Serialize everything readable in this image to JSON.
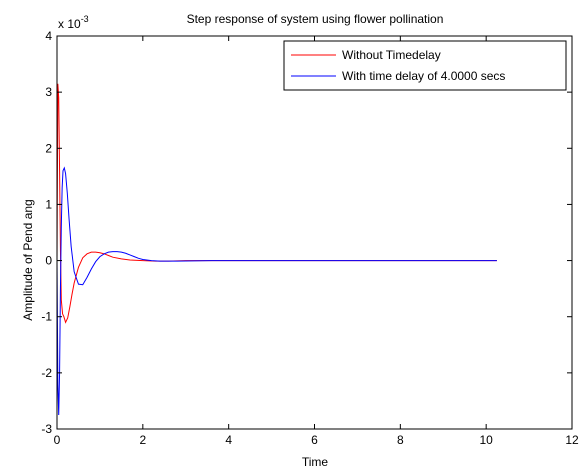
{
  "chart_data": {
    "type": "line",
    "title": "Step response of system using flower pollination",
    "xlabel": "Time",
    "ylabel": "Amplitude of Pend ang",
    "y_scale_label": {
      "base": "x 10",
      "exponent": "-3"
    },
    "xlim": [
      0,
      12
    ],
    "ylim": [
      -3,
      4
    ],
    "x_ticks": [
      "0",
      "2",
      "4",
      "6",
      "8",
      "10",
      "12"
    ],
    "y_ticks": [
      "-3",
      "-2",
      "-1",
      "0",
      "1",
      "2",
      "3",
      "4"
    ],
    "grid": false,
    "legend_position": "top-right",
    "series": [
      {
        "name": "Without Timedelay",
        "color": "#ff0000",
        "x": [
          0,
          0.02,
          0.04,
          0.06,
          0.08,
          0.1,
          0.13,
          0.16,
          0.2,
          0.25,
          0.3,
          0.35,
          0.4,
          0.5,
          0.6,
          0.7,
          0.8,
          0.9,
          1.0,
          1.1,
          1.2,
          1.3,
          1.5,
          1.7,
          2.0,
          2.3,
          2.6,
          3.0,
          3.6,
          5,
          7,
          9,
          10.25
        ],
        "y": [
          0,
          3.15,
          2.9,
          1.6,
          0.2,
          -0.7,
          -0.95,
          -1.0,
          -1.1,
          -1.02,
          -0.82,
          -0.6,
          -0.4,
          -0.12,
          0.05,
          0.12,
          0.15,
          0.15,
          0.14,
          0.12,
          0.09,
          0.06,
          0.03,
          0.01,
          0.0,
          -0.01,
          -0.01,
          0.0,
          0.0,
          0.0,
          0.0,
          0.0,
          0.0
        ]
      },
      {
        "name": "With time delay of 4.0000 secs",
        "color": "#0000ff",
        "x": [
          0,
          0.02,
          0.04,
          0.06,
          0.08,
          0.1,
          0.12,
          0.14,
          0.17,
          0.2,
          0.24,
          0.28,
          0.33,
          0.4,
          0.5,
          0.6,
          0.7,
          0.8,
          0.9,
          1.0,
          1.1,
          1.2,
          1.3,
          1.4,
          1.5,
          1.6,
          1.7,
          1.8,
          1.9,
          2.0,
          2.2,
          2.4,
          2.8,
          3.6,
          5,
          7,
          9,
          10.25
        ],
        "y": [
          0,
          -2.2,
          -2.75,
          -2.0,
          -0.5,
          0.6,
          1.3,
          1.6,
          1.65,
          1.55,
          1.2,
          0.75,
          0.25,
          -0.2,
          -0.42,
          -0.43,
          -0.3,
          -0.15,
          -0.02,
          0.07,
          0.12,
          0.15,
          0.16,
          0.16,
          0.15,
          0.13,
          0.1,
          0.07,
          0.04,
          0.02,
          0.0,
          -0.01,
          -0.01,
          0.0,
          0.0,
          0.0,
          0.0,
          0.0
        ]
      }
    ]
  }
}
